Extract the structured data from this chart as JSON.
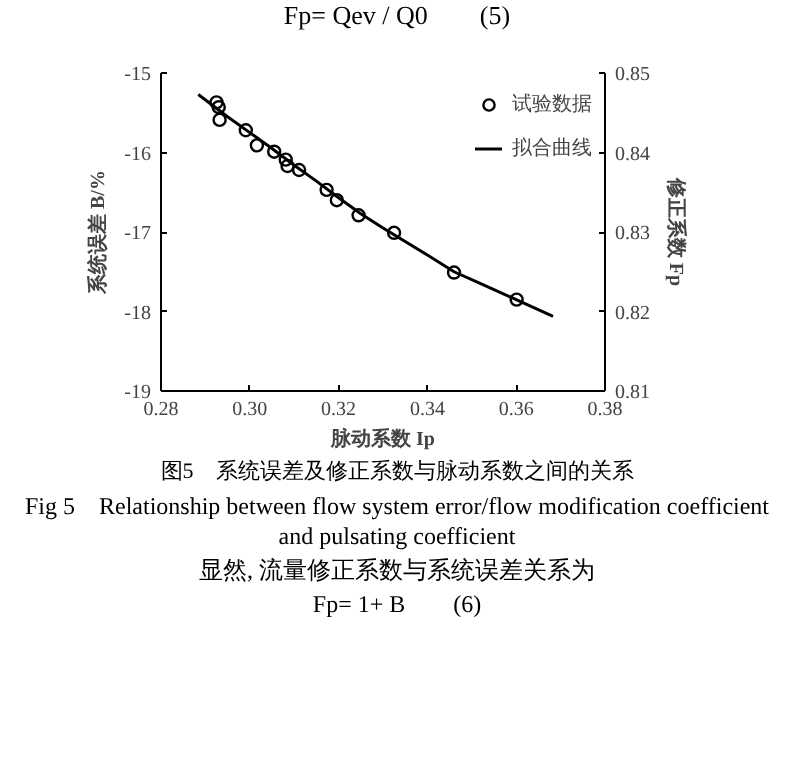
{
  "chart_data": {
    "type": "scatter",
    "title": "图5　系统误差及修正系数与脉动系数之间的关系",
    "subtitle": "Fig 5　Relationship between flow system error/flow modification coefficient and pulsating coefficient",
    "annotations": [
      "Fp= Qev / Q0　　(5)",
      "显然, 流量修正系数与系统误差关系为",
      "Fp= 1+ B　　(6)"
    ],
    "xlabel": "脉动系数 Ip",
    "ylabel": "系统误差 B/%",
    "y2label": "修正系数 Fp",
    "xlim": [
      0.28,
      0.38
    ],
    "xticks": [
      0.28,
      {
        "value": 0.3,
        "label": "0.30"
      },
      0.32,
      0.34,
      0.36,
      0.38
    ],
    "ylim": [
      -19,
      -15
    ],
    "yticks": [
      -19,
      -18,
      -17,
      -16,
      -15
    ],
    "y2lim": [
      0.81,
      0.85
    ],
    "y2ticks": [
      0.81,
      0.82,
      0.83,
      0.84,
      0.85
    ],
    "grid": false,
    "legend": "top right",
    "series": [
      {
        "name": "试验数据",
        "marker": "circle",
        "color": "#000000",
        "x": [
          0.2925,
          0.293,
          0.2932,
          0.2991,
          0.3016,
          0.3055,
          0.3081,
          0.3085,
          0.3111,
          0.3173,
          0.3196,
          0.3245,
          0.3325,
          0.346,
          0.3601
        ],
        "values": [
          -15.37,
          -15.43,
          -15.59,
          -15.72,
          -15.91,
          -15.99,
          -16.09,
          -16.17,
          -16.22,
          -16.47,
          -16.6,
          -16.79,
          -17.01,
          -17.51,
          -17.85
        ]
      },
      {
        "name": "拟合曲线",
        "type": "line",
        "line_style": "solid",
        "color": "#000000",
        "x": [
          0.2884,
          0.295,
          0.3,
          0.305,
          0.31,
          0.315,
          0.32,
          0.325,
          0.33,
          0.335,
          0.34,
          0.346,
          0.352,
          0.36,
          0.3683
        ],
        "values": [
          -15.27,
          -15.55,
          -15.75,
          -15.95,
          -16.16,
          -16.36,
          -16.57,
          -16.77,
          -16.95,
          -17.12,
          -17.29,
          -17.5,
          -17.65,
          -17.85,
          -18.06
        ]
      }
    ]
  }
}
